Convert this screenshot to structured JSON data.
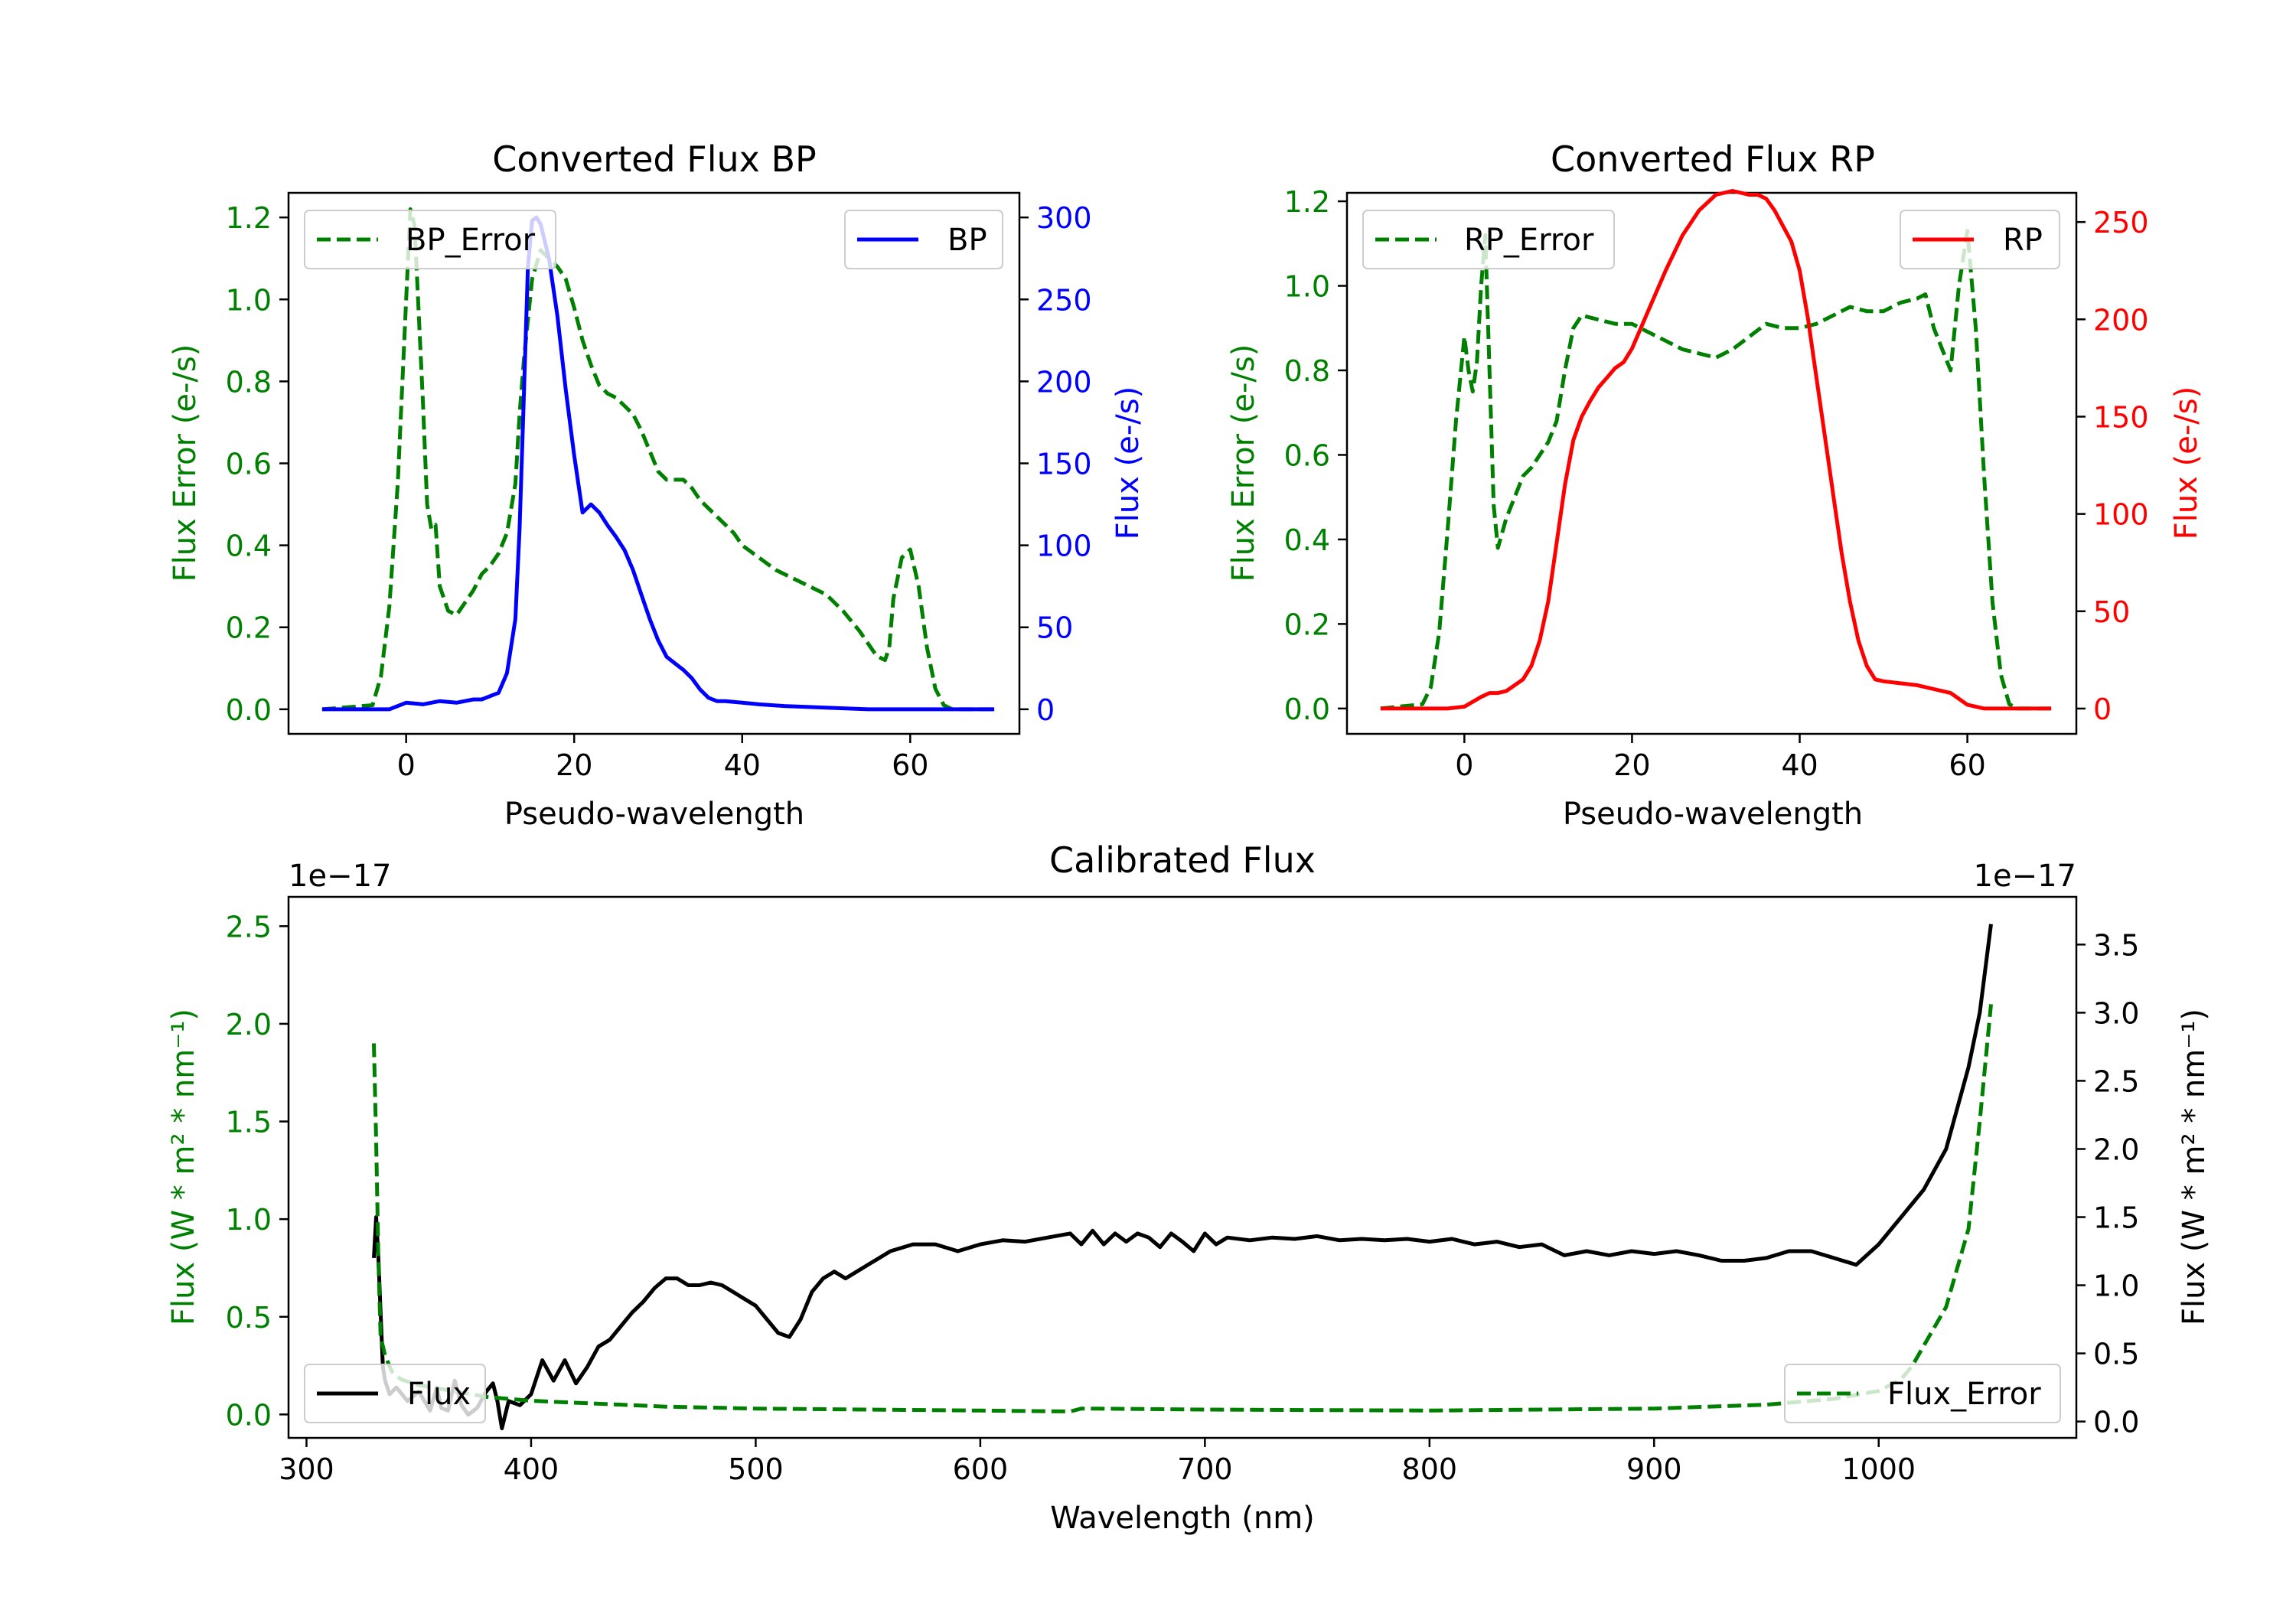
{
  "chart_data": [
    {
      "type": "line",
      "title": "Converted Flux BP",
      "xlabel": "Pseudo-wavelength",
      "ylabel_left": "Flux Error (e-/s)",
      "ylabel_right": "Flux (e-/s)",
      "xlim": [
        -14,
        73
      ],
      "ylim_left": [
        -0.06,
        1.26
      ],
      "ylim_right": [
        -15,
        315
      ],
      "xticks": [
        "0",
        "20",
        "40",
        "60"
      ],
      "yticks_left": [
        "0.0",
        "0.2",
        "0.4",
        "0.6",
        "0.8",
        "1.0",
        "1.2"
      ],
      "yticks_right": [
        "0",
        "50",
        "100",
        "150",
        "200",
        "250",
        "300"
      ],
      "colors": {
        "left": "#008000",
        "right": "#0000ff"
      },
      "series": [
        {
          "name": "BP_Error",
          "axis": "left",
          "style": "dashed",
          "color": "#008000",
          "x": [
            -10,
            -4,
            -3,
            -2,
            -1,
            0,
            0.5,
            1,
            2,
            2.5,
            3,
            3.5,
            4,
            5,
            6,
            7,
            8,
            9,
            10,
            11,
            12,
            13,
            13.5,
            14,
            14.5,
            15,
            16,
            17,
            18,
            19,
            20,
            21,
            22,
            23,
            24,
            25,
            26,
            27,
            28,
            29,
            30,
            31,
            32,
            33,
            34,
            35,
            36,
            37,
            38,
            39,
            40,
            42,
            44,
            46,
            48,
            50,
            52,
            54,
            55,
            56,
            57,
            57.5,
            58,
            59,
            60,
            61,
            62,
            63,
            64,
            65,
            66,
            70
          ],
          "y": [
            0,
            0.01,
            0.08,
            0.25,
            0.55,
            1.0,
            1.22,
            1.18,
            0.75,
            0.5,
            0.44,
            0.45,
            0.3,
            0.24,
            0.23,
            0.26,
            0.29,
            0.33,
            0.35,
            0.38,
            0.43,
            0.55,
            0.72,
            0.85,
            0.95,
            1.05,
            1.12,
            1.1,
            1.08,
            1.05,
            0.98,
            0.9,
            0.84,
            0.79,
            0.77,
            0.76,
            0.74,
            0.72,
            0.68,
            0.63,
            0.58,
            0.56,
            0.56,
            0.56,
            0.54,
            0.51,
            0.49,
            0.47,
            0.45,
            0.43,
            0.4,
            0.37,
            0.34,
            0.32,
            0.3,
            0.28,
            0.24,
            0.19,
            0.16,
            0.13,
            0.12,
            0.15,
            0.27,
            0.37,
            0.39,
            0.3,
            0.15,
            0.05,
            0.01,
            0,
            0,
            0
          ]
        },
        {
          "name": "BP",
          "axis": "right",
          "style": "solid",
          "color": "#0000ff",
          "x": [
            -10,
            -2,
            0,
            2,
            4,
            6,
            8,
            9,
            10,
            11,
            12,
            13,
            13.5,
            14,
            14.5,
            15,
            15.5,
            16,
            17,
            18,
            19,
            20,
            21,
            22,
            23,
            24,
            25,
            26,
            27,
            28,
            29,
            30,
            31,
            32,
            33,
            34,
            35,
            36,
            37,
            38,
            40,
            42,
            45,
            50,
            55,
            60,
            65,
            70
          ],
          "y": [
            0,
            0,
            4,
            3,
            5,
            4,
            6,
            6,
            8,
            10,
            22,
            55,
            110,
            190,
            270,
            298,
            300,
            296,
            275,
            240,
            195,
            155,
            120,
            125,
            120,
            112,
            105,
            97,
            85,
            70,
            55,
            42,
            32,
            28,
            24,
            19,
            12,
            7,
            5,
            5,
            4,
            3,
            2,
            1,
            0,
            0,
            0,
            0
          ]
        }
      ],
      "legend": [
        {
          "label": "BP_Error",
          "position": "top-left"
        },
        {
          "label": "BP",
          "position": "top-right"
        }
      ]
    },
    {
      "type": "line",
      "title": "Converted Flux RP",
      "xlabel": "Pseudo-wavelength",
      "ylabel_left": "Flux Error (e-/s)",
      "ylabel_right": "Flux (e-/s)",
      "xlim": [
        -14,
        73
      ],
      "ylim_left": [
        -0.06,
        1.22
      ],
      "ylim_right": [
        -13,
        265
      ],
      "xticks": [
        "0",
        "20",
        "40",
        "60"
      ],
      "yticks_left": [
        "0.0",
        "0.2",
        "0.4",
        "0.6",
        "0.8",
        "1.0",
        "1.2"
      ],
      "yticks_right": [
        "0",
        "50",
        "100",
        "150",
        "200",
        "250"
      ],
      "colors": {
        "left": "#008000",
        "right": "#ff0000"
      },
      "series": [
        {
          "name": "RP_Error",
          "axis": "left",
          "style": "dashed",
          "color": "#008000",
          "x": [
            -10,
            -5,
            -4,
            -3,
            -2,
            -1,
            0,
            0.5,
            1,
            1.5,
            2,
            2.5,
            3,
            3.5,
            4,
            5,
            6,
            7,
            8,
            9,
            10,
            11,
            12,
            13,
            14,
            16,
            18,
            20,
            22,
            24,
            26,
            28,
            30,
            32,
            34,
            36,
            38,
            40,
            42,
            44,
            46,
            48,
            50,
            52,
            54,
            55,
            56,
            57,
            58,
            59,
            60,
            61,
            62,
            63,
            64,
            65,
            66,
            70
          ],
          "y": [
            0,
            0.01,
            0.05,
            0.18,
            0.42,
            0.68,
            0.88,
            0.8,
            0.75,
            0.82,
            1.0,
            1.12,
            0.8,
            0.48,
            0.38,
            0.45,
            0.5,
            0.55,
            0.57,
            0.6,
            0.63,
            0.68,
            0.8,
            0.9,
            0.93,
            0.92,
            0.91,
            0.91,
            0.89,
            0.87,
            0.85,
            0.84,
            0.83,
            0.85,
            0.88,
            0.91,
            0.9,
            0.9,
            0.91,
            0.93,
            0.95,
            0.94,
            0.94,
            0.96,
            0.97,
            0.98,
            0.9,
            0.85,
            0.8,
            1.0,
            1.13,
            0.9,
            0.55,
            0.25,
            0.08,
            0.01,
            0,
            0
          ]
        },
        {
          "name": "RP",
          "axis": "right",
          "style": "solid",
          "color": "#ff0000",
          "x": [
            -10,
            -2,
            0,
            2,
            3,
            4,
            5,
            6,
            7,
            8,
            9,
            10,
            11,
            12,
            13,
            14,
            15,
            16,
            17,
            18,
            19,
            20,
            21,
            22,
            24,
            26,
            28,
            30,
            31,
            32,
            33,
            34,
            35,
            36,
            37,
            38,
            39,
            40,
            41,
            42,
            43,
            44,
            45,
            46,
            47,
            48,
            49,
            50,
            52,
            54,
            56,
            58,
            60,
            62,
            65,
            70
          ],
          "y": [
            0,
            0,
            1,
            6,
            8,
            8,
            9,
            12,
            15,
            22,
            35,
            55,
            85,
            115,
            138,
            150,
            158,
            165,
            170,
            175,
            178,
            185,
            195,
            205,
            225,
            243,
            256,
            264,
            265,
            266,
            265,
            264,
            264,
            262,
            256,
            248,
            240,
            225,
            200,
            170,
            140,
            110,
            80,
            55,
            35,
            22,
            15,
            14,
            13,
            12,
            10,
            8,
            2,
            0,
            0,
            0
          ]
        }
      ],
      "legend": [
        {
          "label": "RP_Error",
          "position": "top-left"
        },
        {
          "label": "RP",
          "position": "top-right"
        }
      ]
    },
    {
      "type": "line",
      "title": "Calibrated Flux",
      "xlabel": "Wavelength (nm)",
      "ylabel_left": "Flux (W * m² * nm⁻¹)",
      "ylabel_right": "Flux (W * m² * nm⁻¹)",
      "offset_left": "1e−17",
      "offset_right": "1e−17",
      "xlim": [
        292,
        1088
      ],
      "ylim_left": [
        -0.12,
        2.65
      ],
      "ylim_right": [
        -0.12,
        3.85
      ],
      "xticks": [
        "300",
        "400",
        "500",
        "600",
        "700",
        "800",
        "900",
        "1000"
      ],
      "yticks_left": [
        "0.0",
        "0.5",
        "1.0",
        "1.5",
        "2.0",
        "2.5"
      ],
      "yticks_right": [
        "0.0",
        "0.5",
        "1.0",
        "1.5",
        "2.0",
        "2.5",
        "3.0",
        "3.5"
      ],
      "colors": {
        "left": "#008000",
        "right": "#000000"
      },
      "series": [
        {
          "name": "Flux",
          "axis": "right",
          "style": "solid",
          "color": "#000000",
          "x": [
            330,
            331,
            332,
            333,
            334,
            335,
            337,
            340,
            345,
            350,
            355,
            358,
            360,
            363,
            366,
            369,
            372,
            376,
            380,
            383,
            385,
            387,
            390,
            395,
            400,
            405,
            410,
            415,
            420,
            425,
            430,
            435,
            440,
            445,
            450,
            455,
            460,
            465,
            470,
            475,
            480,
            485,
            490,
            495,
            500,
            505,
            510,
            515,
            520,
            525,
            530,
            535,
            540,
            545,
            550,
            560,
            570,
            580,
            590,
            600,
            610,
            620,
            630,
            640,
            645,
            650,
            655,
            660,
            665,
            670,
            675,
            680,
            685,
            690,
            695,
            700,
            705,
            710,
            720,
            730,
            740,
            750,
            760,
            770,
            780,
            790,
            800,
            810,
            820,
            830,
            840,
            850,
            860,
            870,
            880,
            890,
            900,
            910,
            920,
            930,
            940,
            950,
            960,
            970,
            980,
            990,
            1000,
            1010,
            1020,
            1030,
            1040,
            1045,
            1050
          ],
          "y": [
            1.2,
            1.5,
            1.2,
            0.8,
            0.4,
            0.3,
            0.2,
            0.25,
            0.15,
            0.22,
            0.08,
            0.25,
            0.1,
            0.08,
            0.3,
            0.12,
            0.05,
            0.1,
            0.22,
            0.28,
            0.15,
            -0.05,
            0.15,
            0.12,
            0.2,
            0.45,
            0.3,
            0.45,
            0.28,
            0.4,
            0.55,
            0.6,
            0.7,
            0.8,
            0.88,
            0.98,
            1.05,
            1.05,
            1.0,
            1.0,
            1.02,
            1.0,
            0.95,
            0.9,
            0.85,
            0.75,
            0.65,
            0.62,
            0.75,
            0.95,
            1.05,
            1.1,
            1.05,
            1.1,
            1.15,
            1.25,
            1.3,
            1.3,
            1.25,
            1.3,
            1.33,
            1.32,
            1.35,
            1.38,
            1.3,
            1.4,
            1.3,
            1.38,
            1.32,
            1.38,
            1.35,
            1.28,
            1.38,
            1.32,
            1.25,
            1.38,
            1.3,
            1.35,
            1.33,
            1.35,
            1.34,
            1.36,
            1.33,
            1.34,
            1.33,
            1.34,
            1.32,
            1.34,
            1.3,
            1.32,
            1.28,
            1.3,
            1.22,
            1.25,
            1.22,
            1.25,
            1.23,
            1.25,
            1.22,
            1.18,
            1.18,
            1.2,
            1.25,
            1.25,
            1.2,
            1.15,
            1.3,
            1.5,
            1.7,
            2.0,
            2.6,
            3.0,
            3.65
          ]
        },
        {
          "name": "Flux_Error",
          "axis": "left",
          "style": "dashed",
          "color": "#008000",
          "x": [
            330,
            331,
            332,
            333,
            335,
            338,
            342,
            350,
            360,
            370,
            380,
            390,
            400,
            420,
            440,
            460,
            500,
            550,
            600,
            640,
            645,
            650,
            700,
            800,
            900,
            950,
            980,
            1000,
            1010,
            1015,
            1020,
            1030,
            1040,
            1045,
            1050
          ],
          "y": [
            1.9,
            1.4,
            0.8,
            0.4,
            0.3,
            0.22,
            0.18,
            0.15,
            0.13,
            0.11,
            0.09,
            0.08,
            0.07,
            0.06,
            0.05,
            0.04,
            0.03,
            0.025,
            0.02,
            0.015,
            0.03,
            0.03,
            0.025,
            0.02,
            0.03,
            0.05,
            0.08,
            0.12,
            0.18,
            0.25,
            0.35,
            0.55,
            0.95,
            1.5,
            2.1
          ]
        }
      ],
      "legend": [
        {
          "label": "Flux",
          "position": "bottom-left"
        },
        {
          "label": "Flux_Error",
          "position": "bottom-right"
        }
      ]
    }
  ]
}
